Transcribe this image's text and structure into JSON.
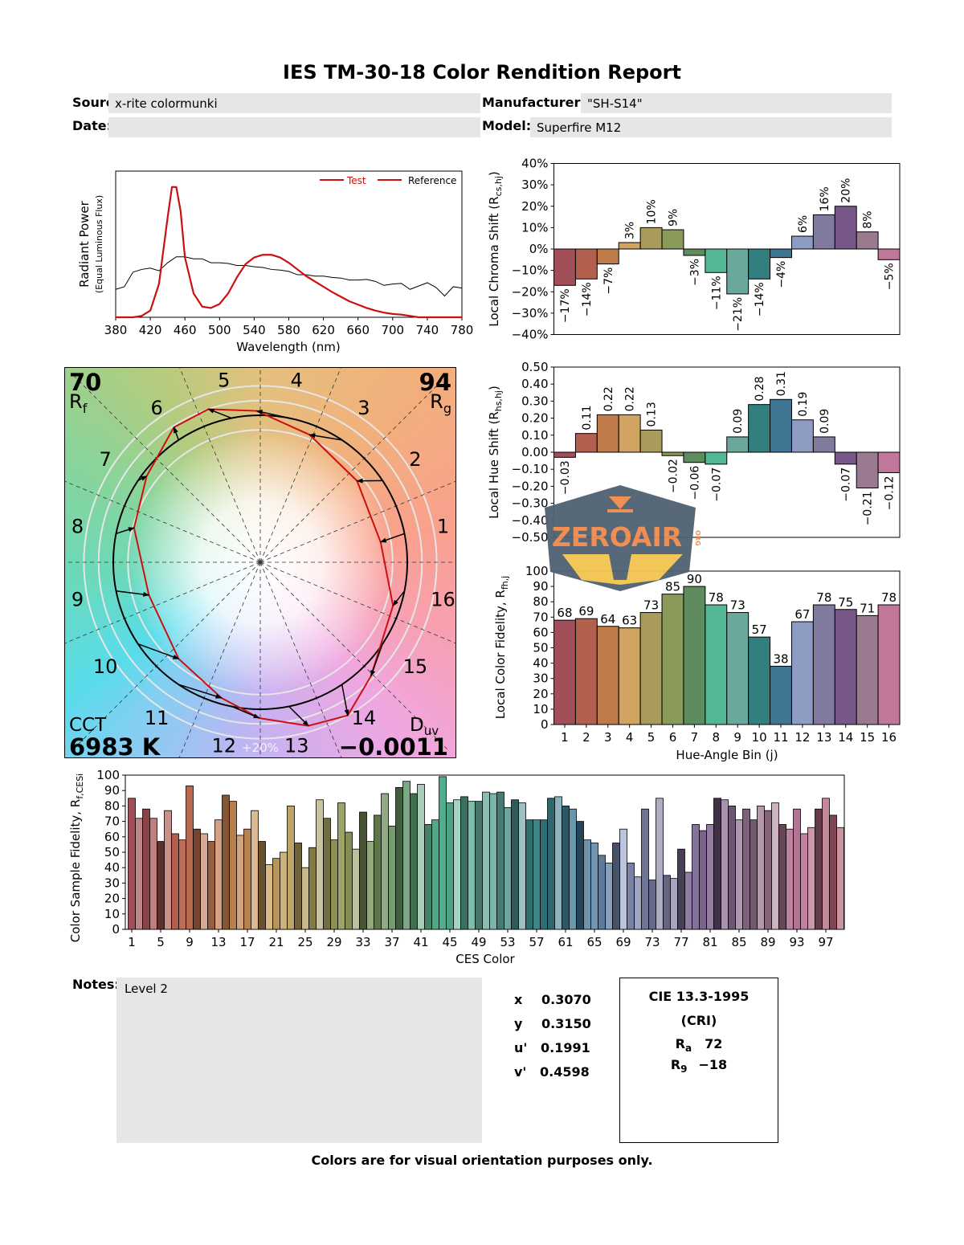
{
  "report": {
    "title": "IES TM-30-18 Color Rendition Report",
    "source_label": "Source:",
    "source": "x-rite colormunki",
    "manufacturer_label": "Manufacturer:",
    "manufacturer": "\"SH-S14\"",
    "date_label": "Date:",
    "date": "",
    "model_label": "Model:",
    "model": "Superfire M12",
    "notes_label": "Notes:",
    "notes": "Level 2",
    "footer": "Colors are for visual orientation purposes only."
  },
  "chromaticity": [
    {
      "label": "x",
      "value": "0.3070"
    },
    {
      "label": "y",
      "value": "0.3150"
    },
    {
      "label": "u'",
      "value": "0.1991"
    },
    {
      "label": "v'",
      "value": "0.4598"
    }
  ],
  "cri": {
    "title": "CIE 13.3-1995",
    "subtitle": "(CRI)",
    "ra_label": "R",
    "ra_sub": "a",
    "ra": "72",
    "r9_label": "R",
    "r9_sub": "9",
    "r9": "-18"
  },
  "vector_graphic": {
    "rf": "70",
    "rf_label": "R",
    "rf_sub": "f",
    "rg": "94",
    "rg_label": "R",
    "rg_sub": "g",
    "cct_label": "CCT",
    "cct": "6983 K",
    "duv_label": "D",
    "duv_sub": "uv",
    "duv": "-0.0011",
    "ring_label": "+20%",
    "bin_labels": [
      "1",
      "2",
      "3",
      "4",
      "5",
      "6",
      "7",
      "8",
      "9",
      "10",
      "11",
      "12",
      "13",
      "14",
      "15",
      "16"
    ]
  },
  "watermark": {
    "text": "ZEROAIR",
    "suffix": "ORG"
  },
  "colors": {
    "test_line": "#cc1010",
    "bins": [
      "#a34f5a",
      "#b4604f",
      "#c07b4a",
      "#d0a460",
      "#a99b5c",
      "#8a9a5a",
      "#5e8c5e",
      "#53b796",
      "#6aa89c",
      "#337f80",
      "#3f7593",
      "#8e9cc4",
      "#7f7a9e",
      "#785889",
      "#9a7a90",
      "#c0789a"
    ]
  },
  "chart_data": [
    {
      "id": "spectrum",
      "type": "line",
      "xlabel": "Wavelength (nm)",
      "ylabel": "Radiant Power",
      "ylabel2": "(Equal Luminous Flux)",
      "xlim": [
        380,
        780
      ],
      "ylim": [
        0,
        1.1
      ],
      "xticks": [
        380,
        420,
        460,
        500,
        540,
        580,
        620,
        660,
        700,
        740,
        780
      ],
      "legend": "top-right",
      "series": [
        {
          "name": "Test",
          "x": [
            380,
            390,
            400,
            410,
            420,
            430,
            440,
            445,
            450,
            455,
            460,
            470,
            480,
            490,
            500,
            510,
            520,
            530,
            540,
            550,
            560,
            570,
            580,
            590,
            600,
            610,
            620,
            630,
            640,
            650,
            660,
            670,
            680,
            690,
            700,
            710,
            720,
            730,
            740,
            750,
            760,
            770,
            780
          ],
          "y": [
            0,
            0,
            0,
            0.01,
            0.05,
            0.25,
            0.75,
            0.98,
            0.98,
            0.8,
            0.45,
            0.18,
            0.08,
            0.07,
            0.1,
            0.18,
            0.3,
            0.4,
            0.45,
            0.47,
            0.47,
            0.45,
            0.41,
            0.36,
            0.31,
            0.27,
            0.23,
            0.19,
            0.155,
            0.12,
            0.095,
            0.07,
            0.05,
            0.035,
            0.025,
            0.02,
            0.01,
            0,
            0,
            0,
            0,
            0,
            0
          ]
        },
        {
          "name": "Reference",
          "x": [
            380,
            390,
            400,
            410,
            420,
            430,
            440,
            450,
            460,
            470,
            480,
            490,
            500,
            510,
            520,
            530,
            540,
            550,
            560,
            570,
            580,
            590,
            600,
            610,
            620,
            630,
            640,
            650,
            660,
            670,
            680,
            690,
            700,
            710,
            720,
            730,
            740,
            750,
            760,
            770,
            780
          ],
          "y": [
            0.21,
            0.23,
            0.34,
            0.36,
            0.37,
            0.35,
            0.41,
            0.455,
            0.455,
            0.44,
            0.44,
            0.41,
            0.41,
            0.405,
            0.39,
            0.39,
            0.38,
            0.375,
            0.36,
            0.355,
            0.345,
            0.32,
            0.32,
            0.31,
            0.31,
            0.3,
            0.295,
            0.28,
            0.28,
            0.285,
            0.27,
            0.24,
            0.25,
            0.255,
            0.21,
            0.235,
            0.26,
            0.225,
            0.16,
            0.23,
            0.22
          ]
        }
      ]
    },
    {
      "id": "chroma_shift",
      "type": "bar",
      "ylabel": "Local Chroma Shift (R",
      "ylabel_sub": "cs,hj",
      "ylabel_end": ")",
      "ylim": [
        -40,
        40
      ],
      "yticks": [
        40,
        30,
        20,
        10,
        0,
        -10,
        -20,
        -30,
        -40
      ],
      "unit": "%",
      "categories": [
        "1",
        "2",
        "3",
        "4",
        "5",
        "6",
        "7",
        "8",
        "9",
        "10",
        "11",
        "12",
        "13",
        "14",
        "15",
        "16"
      ],
      "values": [
        -17,
        -14,
        -7,
        3,
        10,
        9,
        -3,
        -11,
        -21,
        -14,
        -4,
        6,
        16,
        20,
        8,
        -5
      ]
    },
    {
      "id": "hue_shift",
      "type": "bar",
      "ylabel": "Local Hue Shift (R",
      "ylabel_sub": "hs,hj",
      "ylabel_end": ")",
      "ylim": [
        -0.5,
        0.5
      ],
      "yticks": [
        0.5,
        0.4,
        0.3,
        0.2,
        0.1,
        0,
        -0.1,
        -0.2,
        -0.3,
        -0.4,
        -0.5
      ],
      "categories": [
        "1",
        "2",
        "3",
        "4",
        "5",
        "6",
        "7",
        "8",
        "9",
        "10",
        "11",
        "12",
        "13",
        "14",
        "15",
        "16"
      ],
      "values": [
        -0.03,
        0.11,
        0.22,
        0.22,
        0.13,
        -0.02,
        -0.06,
        -0.07,
        0.09,
        0.28,
        0.31,
        0.19,
        0.09,
        -0.07,
        -0.21,
        -0.12
      ]
    },
    {
      "id": "local_fidelity",
      "type": "bar",
      "xlabel": "Hue-Angle Bin (j)",
      "ylabel": "Local Color Fidelity, R",
      "ylabel_sub": "fh,j",
      "ylabel_end": "",
      "ylim": [
        0,
        100
      ],
      "yticks": [
        100,
        90,
        80,
        70,
        60,
        50,
        40,
        30,
        20,
        10,
        0
      ],
      "categories": [
        "1",
        "2",
        "3",
        "4",
        "5",
        "6",
        "7",
        "8",
        "9",
        "10",
        "11",
        "12",
        "13",
        "14",
        "15",
        "16"
      ],
      "values": [
        68,
        69,
        64,
        63,
        73,
        85,
        90,
        78,
        73,
        57,
        38,
        67,
        78,
        75,
        71,
        78
      ]
    },
    {
      "id": "ces_fidelity",
      "type": "bar",
      "xlabel": "CES Color",
      "ylabel": "Color Sample Fidelity, R",
      "ylabel_sub": "f,CESi",
      "ylabel_end": "",
      "ylim": [
        0,
        100
      ],
      "yticks": [
        100,
        90,
        80,
        70,
        60,
        50,
        40,
        30,
        20,
        10,
        0
      ],
      "xticks": [
        1,
        5,
        9,
        13,
        17,
        21,
        25,
        29,
        33,
        37,
        41,
        45,
        49,
        53,
        57,
        61,
        65,
        69,
        73,
        77,
        81,
        85,
        89,
        93,
        97
      ],
      "values": [
        85,
        72,
        78,
        72,
        57,
        77,
        62,
        58,
        93,
        65,
        62,
        57,
        71,
        87,
        83,
        61,
        65,
        77,
        57,
        42,
        46,
        50,
        80,
        56,
        40,
        53,
        84,
        72,
        58,
        82,
        63,
        52,
        76,
        57,
        74,
        88,
        67,
        92,
        96,
        88,
        94,
        68,
        71,
        99,
        82,
        84,
        86,
        83,
        83,
        89,
        88,
        89,
        79,
        84,
        82,
        71,
        71,
        71,
        85,
        86,
        80,
        78,
        70,
        58,
        56,
        48,
        43,
        56,
        65,
        43,
        34,
        78,
        32,
        85,
        35,
        33,
        52,
        37,
        68,
        64,
        68,
        85,
        84,
        80,
        71,
        78,
        71,
        80,
        77,
        82,
        68,
        65,
        78,
        62,
        66,
        78,
        85,
        74,
        66
      ]
    }
  ]
}
